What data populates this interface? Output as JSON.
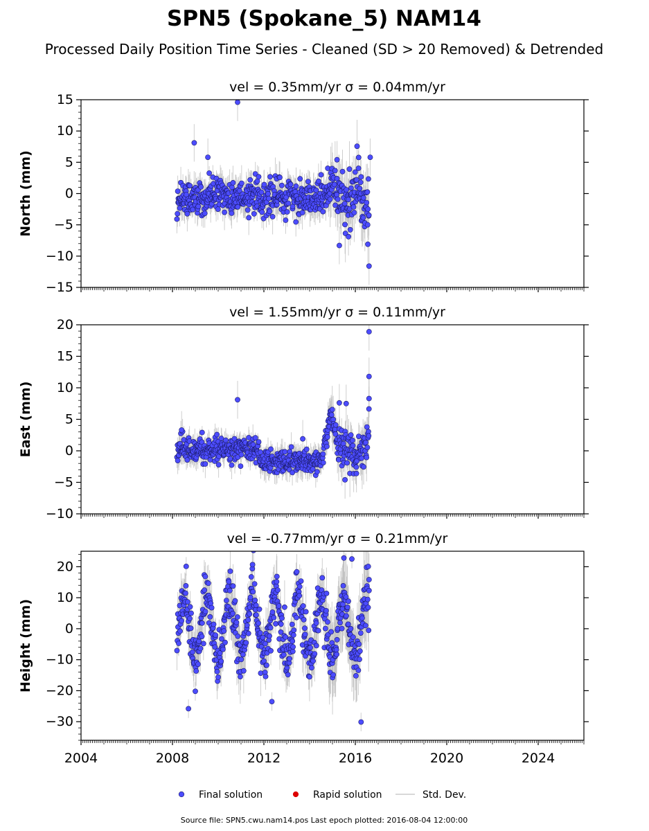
{
  "title": "SPN5 (Spokane_5) NAM14",
  "subtitle": "Processed Daily Position Time Series - Cleaned (SD > 20 Removed) & Detrended",
  "source_line": "Source file: SPN5.cwu.nam14.pos  Last epoch plotted: 2016-08-04 12:00:00",
  "legend": [
    {
      "label": "Final solution",
      "kind": "marker",
      "color": "#4c4cff"
    },
    {
      "label": "Rapid solution",
      "kind": "marker",
      "color": "#dd0000"
    },
    {
      "label": "Std. Dev.",
      "kind": "line",
      "color": "#cccccc"
    }
  ],
  "colors": {
    "final": "#4c4cff",
    "rapid": "#dd0000",
    "std": "#bdbdbd",
    "axis": "#000000"
  },
  "chart_data": [
    {
      "type": "scatter",
      "panel": "north",
      "title": "vel = 0.35mm/yr   σ = 0.04mm/yr",
      "ylabel": "North (mm)",
      "xlabel": "",
      "xlim": [
        2004,
        2026
      ],
      "ylim": [
        -15,
        15
      ],
      "yticks": [
        -15,
        -10,
        -5,
        0,
        5,
        10,
        15
      ],
      "xticks": [
        2004,
        2008,
        2012,
        2016,
        2020,
        2024
      ],
      "x_range_data": [
        2008.2,
        2016.6
      ],
      "grid": false,
      "series": [
        {
          "name": "Final solution",
          "pattern": "flat",
          "scatter_sd": 1.3,
          "extra_sd_after_2014_8": 2.4
        },
        {
          "name": "Std. Dev.",
          "typical_sd": 2.0
        }
      ],
      "outliers": [
        [
          2008.95,
          8.1
        ],
        [
          2009.55,
          5.8
        ],
        [
          2010.85,
          14.6
        ],
        [
          2015.3,
          -8.3
        ],
        [
          2015.7,
          -6.9
        ],
        [
          2016.6,
          -11.6
        ],
        [
          2016.55,
          -8.1
        ],
        [
          2015.2,
          5.4
        ],
        [
          2016.65,
          5.8
        ]
      ]
    },
    {
      "type": "scatter",
      "panel": "east",
      "title": "vel = 1.55mm/yr   σ = 0.11mm/yr",
      "ylabel": "East (mm)",
      "xlabel": "",
      "xlim": [
        2004,
        2026
      ],
      "ylim": [
        -10,
        20
      ],
      "yticks": [
        -10,
        -5,
        0,
        5,
        10,
        15,
        20
      ],
      "xticks": [
        2004,
        2008,
        2012,
        2016,
        2020,
        2024
      ],
      "x_range_data": [
        2008.2,
        2016.6
      ],
      "grid": false,
      "series": [
        {
          "name": "Final solution",
          "pattern": "east",
          "scatter_sd": 0.9
        },
        {
          "name": "Std. Dev.",
          "typical_sd": 1.6
        }
      ],
      "outliers": [
        [
          2008.4,
          3.3
        ],
        [
          2010.85,
          8.1
        ],
        [
          2013.7,
          1.9
        ],
        [
          2015.3,
          7.6
        ],
        [
          2015.6,
          7.5
        ],
        [
          2016.6,
          18.9
        ],
        [
          2016.6,
          11.8
        ],
        [
          2016.6,
          8.3
        ],
        [
          2016.05,
          -3.6
        ],
        [
          2015.55,
          -4.6
        ]
      ]
    },
    {
      "type": "scatter",
      "panel": "height",
      "title": "vel = -0.77mm/yr   σ = 0.21mm/yr",
      "ylabel": "Height (mm)",
      "xlabel": "",
      "xlim": [
        2004,
        2026
      ],
      "ylim": [
        -36,
        25
      ],
      "yticks": [
        -30,
        -20,
        -10,
        0,
        10,
        20
      ],
      "xticks": [
        2004,
        2008,
        2012,
        2016,
        2020,
        2024
      ],
      "x_range_data": [
        2008.2,
        2016.6
      ],
      "grid": false,
      "series": [
        {
          "name": "Final solution",
          "pattern": "seasonal",
          "amplitude": 10,
          "scatter_sd": 4.0
        },
        {
          "name": "Std. Dev.",
          "typical_sd": 6.0
        }
      ],
      "outliers": [
        [
          2008.7,
          -25.8
        ],
        [
          2008.6,
          20.1
        ],
        [
          2009.0,
          -20.2
        ],
        [
          2012.35,
          -23.5
        ],
        [
          2016.25,
          -30.1
        ],
        [
          2015.85,
          22.5
        ],
        [
          2015.5,
          22.8
        ],
        [
          2016.6,
          12.3
        ]
      ]
    }
  ]
}
